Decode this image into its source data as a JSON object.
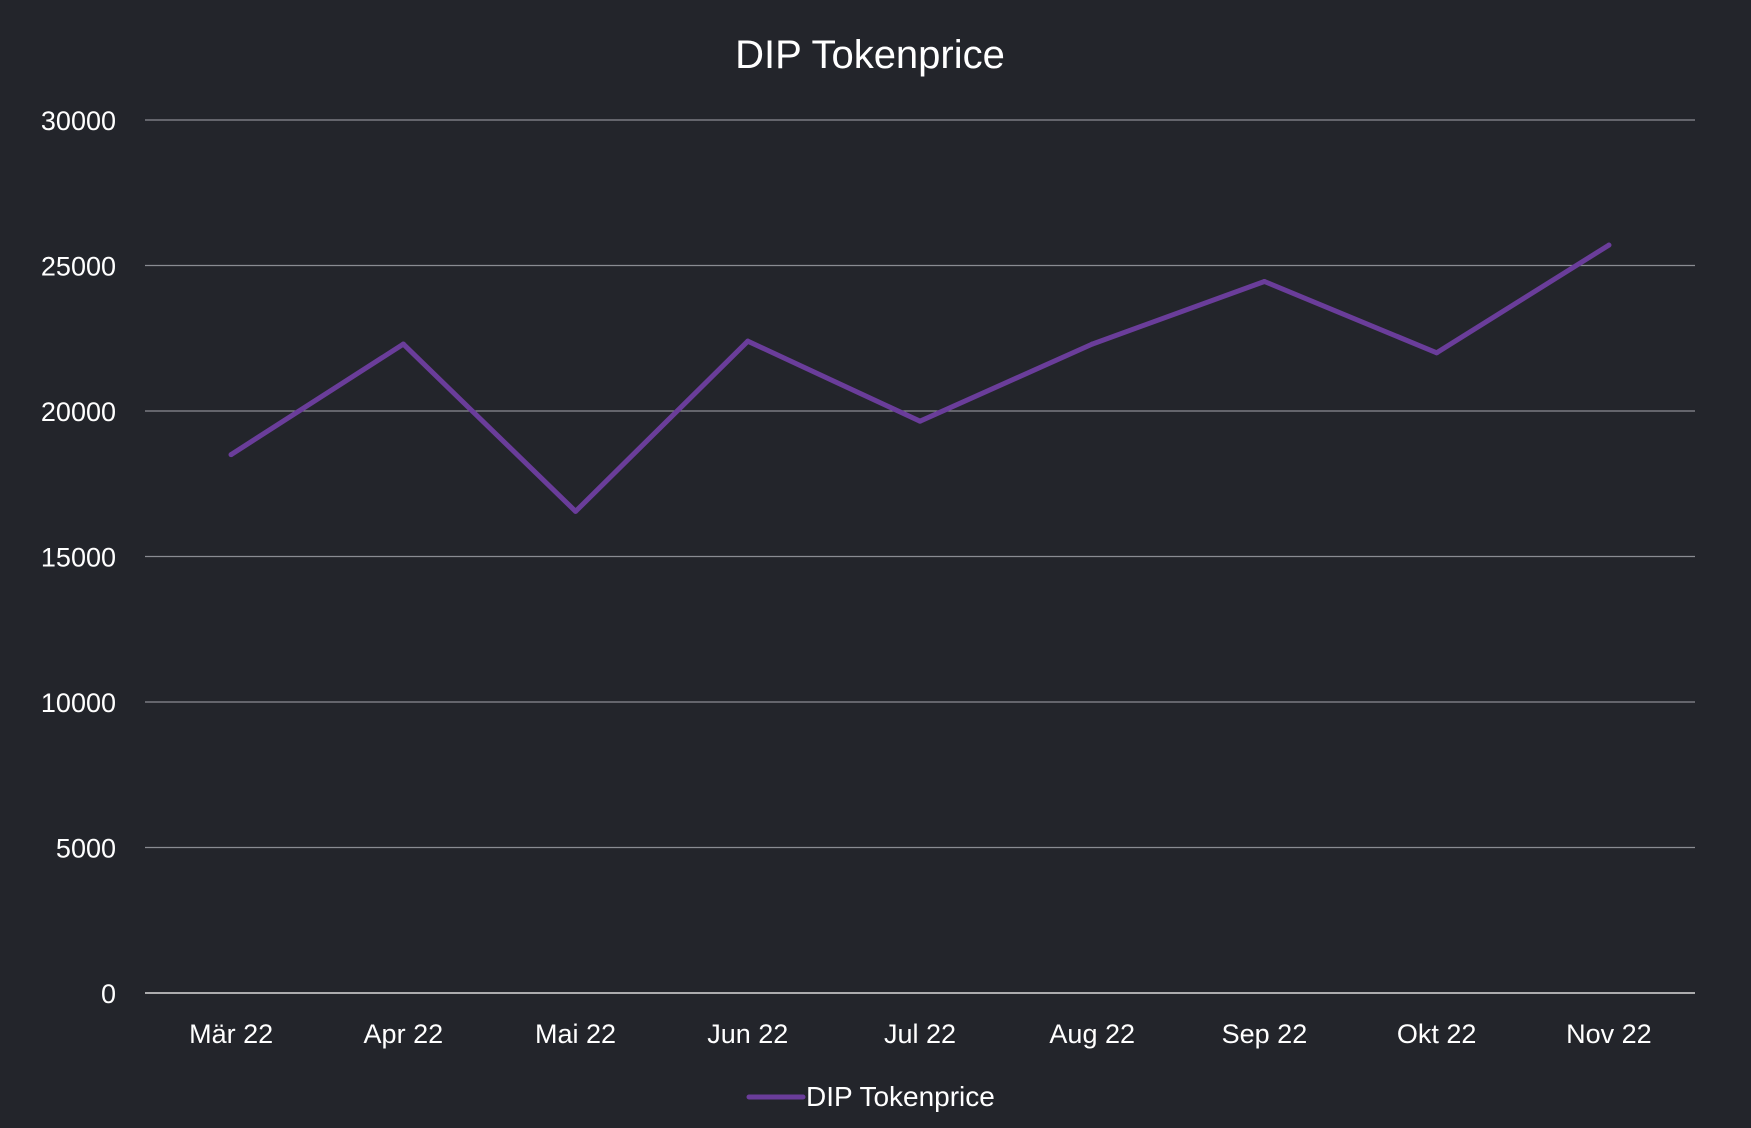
{
  "chart_data": {
    "type": "line",
    "title": "DIP Tokenprice",
    "xlabel": "",
    "ylabel": "",
    "categories": [
      "Mär 22",
      "Apr 22",
      "Mai 22",
      "Jun 22",
      "Jul 22",
      "Aug 22",
      "Sep 22",
      "Okt 22",
      "Nov 22"
    ],
    "series": [
      {
        "name": "DIP Tokenprice",
        "color": "#6a3d9a",
        "values": [
          18500,
          22300,
          16550,
          22400,
          19650,
          22300,
          24450,
          22000,
          25700
        ]
      }
    ],
    "ylim": [
      0,
      30000
    ],
    "yticks": [
      0,
      5000,
      10000,
      15000,
      20000,
      25000,
      30000
    ],
    "ytick_labels": [
      "0",
      "5000",
      "10000",
      "15000",
      "20000",
      "25000",
      "30000"
    ],
    "grid": true,
    "legend_position": "bottom",
    "colors": {
      "background": "#23252b",
      "text": "#ffffff",
      "grid": "#8a8c92",
      "axis": "#d9d9d9"
    }
  }
}
